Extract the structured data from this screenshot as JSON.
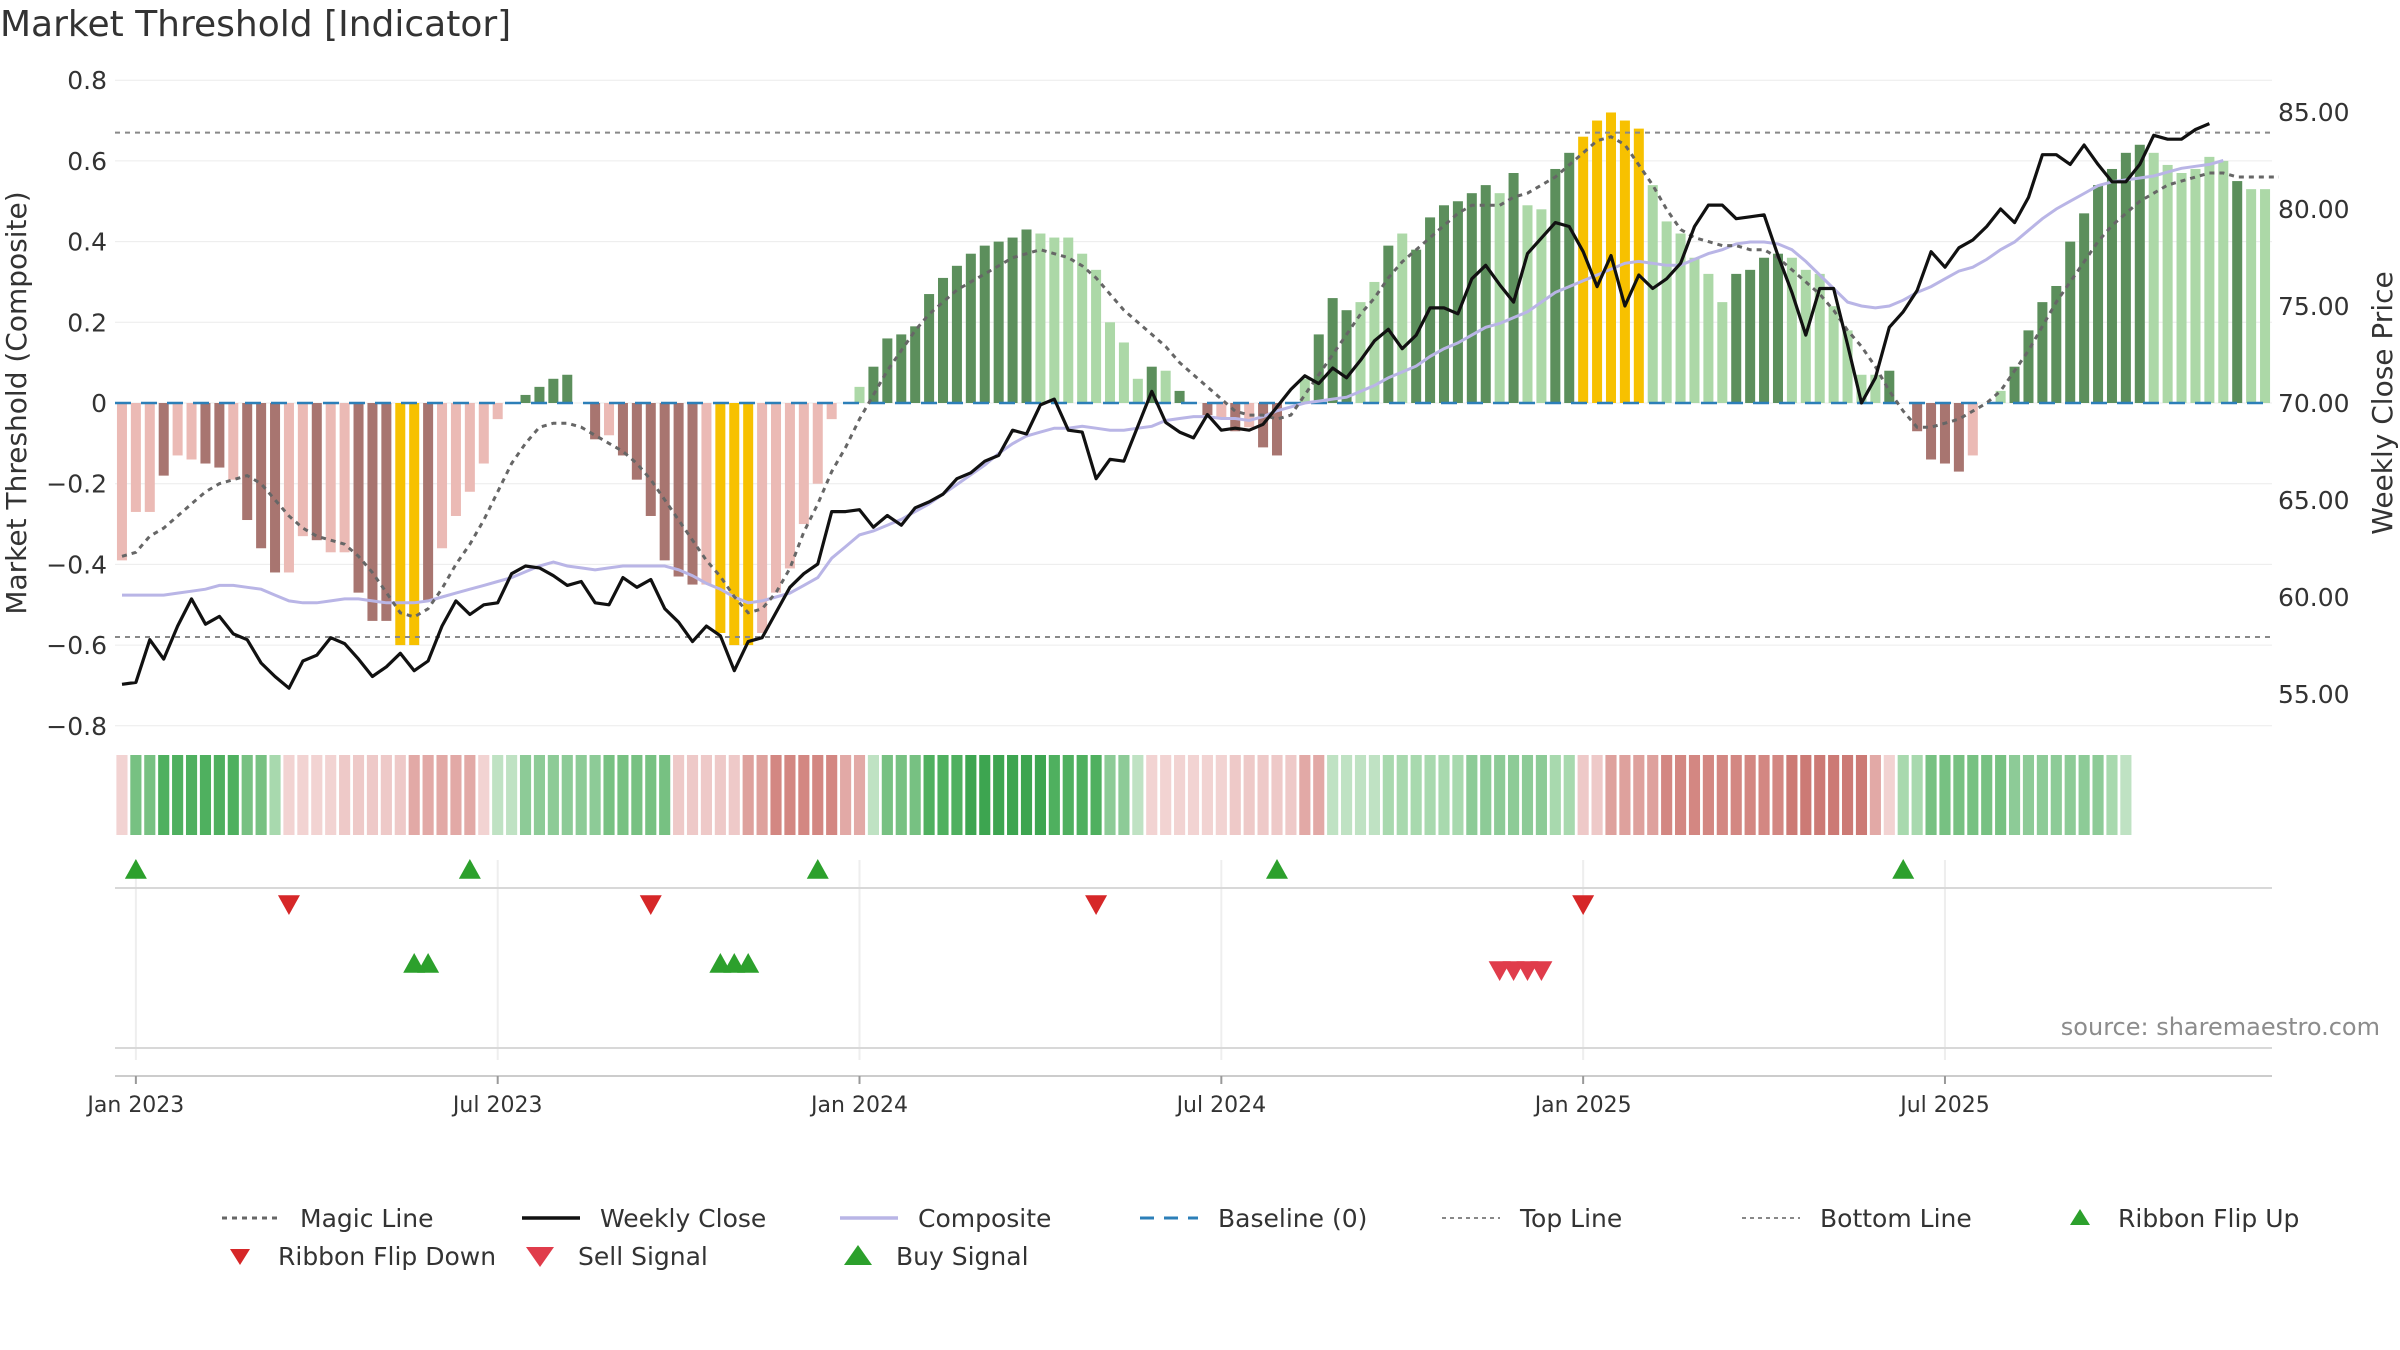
{
  "title": "Market Threshold [Indicator]",
  "source": "source: sharemaestro.com",
  "colors": {
    "bar_strong_pos": "#5c8f5c",
    "bar_weak_pos": "#acd8a7",
    "bar_strong_neg": "#a87570",
    "bar_weak_neg": "#ebbab5",
    "bar_extreme": "#f7c100",
    "weekly_close": "#111111",
    "composite": "#b9b5e6",
    "magic_line": "#666666",
    "baseline": "#2c7fb8",
    "threshold": "#888888",
    "buy": "#2ca02c",
    "sell": "#d62728",
    "sell_signal": "#e03c4b"
  },
  "chart_data": {
    "type": "bar",
    "xlabel": "",
    "ylabel_left": "Market Threshold (Composite)",
    "ylabel_right": "Weekly Close Price",
    "ylim_left": [
      -0.8,
      0.8
    ],
    "ylim_right": [
      52.5,
      85.5
    ],
    "yticks_left": [
      {
        "v": 0.8,
        "label": "0.8"
      },
      {
        "v": 0.6,
        "label": "0.6"
      },
      {
        "v": 0.4,
        "label": "0.4"
      },
      {
        "v": 0.2,
        "label": "0.2"
      },
      {
        "v": 0,
        "label": "0"
      },
      {
        "v": -0.2,
        "label": "−0.2"
      },
      {
        "v": -0.4,
        "label": "−0.4"
      },
      {
        "v": -0.6,
        "label": "−0.6"
      },
      {
        "v": -0.8,
        "label": "−0.8"
      }
    ],
    "yticks_right": [
      {
        "v": 85,
        "label": "85.00"
      },
      {
        "v": 80,
        "label": "80.00"
      },
      {
        "v": 75,
        "label": "75.00"
      },
      {
        "v": 70,
        "label": "70.00"
      },
      {
        "v": 65,
        "label": "65.00"
      },
      {
        "v": 60,
        "label": "60.00"
      },
      {
        "v": 55,
        "label": "55.00"
      }
    ],
    "xticks": [
      {
        "week": 1,
        "label": "Jan 2023"
      },
      {
        "week": 27,
        "label": "Jul 2023"
      },
      {
        "week": 53,
        "label": "Jan 2024"
      },
      {
        "week": 79,
        "label": "Jul 2024"
      },
      {
        "week": 105,
        "label": "Jan 2025"
      },
      {
        "week": 131,
        "label": "Jul 2025"
      }
    ],
    "top_line": 0.67,
    "bottom_line": -0.58,
    "baseline": 0,
    "grid": true,
    "legend_position": "bottom",
    "threshold_bars": [
      -0.39,
      -0.27,
      -0.27,
      -0.18,
      -0.13,
      -0.14,
      -0.15,
      -0.16,
      -0.19,
      -0.29,
      -0.36,
      -0.42,
      -0.42,
      -0.33,
      -0.34,
      -0.37,
      -0.37,
      -0.47,
      -0.54,
      -0.54,
      -0.6,
      -0.6,
      -0.49,
      -0.36,
      -0.28,
      -0.22,
      -0.15,
      -0.04,
      0,
      0.02,
      0.04,
      0.06,
      0.07,
      0,
      -0.09,
      -0.08,
      -0.13,
      -0.19,
      -0.28,
      -0.39,
      -0.43,
      -0.45,
      -0.45,
      -0.57,
      -0.6,
      -0.6,
      -0.57,
      -0.47,
      -0.41,
      -0.3,
      -0.2,
      -0.04,
      0,
      0.04,
      0.09,
      0.16,
      0.17,
      0.19,
      0.27,
      0.31,
      0.34,
      0.37,
      0.39,
      0.4,
      0.41,
      0.43,
      0.42,
      0.41,
      0.41,
      0.37,
      0.33,
      0.2,
      0.15,
      0.06,
      0.09,
      0.08,
      0.03,
      0,
      -0.03,
      -0.04,
      -0.07,
      -0.06,
      -0.11,
      -0.13,
      0,
      0.06,
      0.17,
      0.26,
      0.23,
      0.25,
      0.3,
      0.39,
      0.42,
      0.38,
      0.46,
      0.49,
      0.5,
      0.52,
      0.54,
      0.52,
      0.57,
      0.49,
      0.48,
      0.58,
      0.62,
      0.66,
      0.7,
      0.72,
      0.7,
      0.68,
      0.54,
      0.45,
      0.42,
      0.36,
      0.32,
      0.25,
      0.32,
      0.33,
      0.36,
      0.37,
      0.36,
      0.33,
      0.32,
      0.24,
      0.18,
      0.07,
      0.07,
      0.08,
      0,
      -0.07,
      -0.14,
      -0.15,
      -0.17,
      -0.13,
      0,
      0.03,
      0.09,
      0.18,
      0.25,
      0.29,
      0.4,
      0.47,
      0.54,
      0.58,
      0.62,
      0.64,
      0.62,
      0.59,
      0.57,
      0.58,
      0.61,
      0.6,
      0.55,
      0.53,
      0.53
    ],
    "bar_categories": [
      "weak-neg",
      "weak-neg",
      "weak-neg",
      "strong-neg",
      "weak-neg",
      "weak-neg",
      "strong-neg",
      "strong-neg",
      "weak-neg",
      "strong-neg",
      "strong-neg",
      "strong-neg",
      "weak-neg",
      "weak-neg",
      "strong-neg",
      "weak-neg",
      "weak-neg",
      "strong-neg",
      "strong-neg",
      "strong-neg",
      "extreme",
      "extreme",
      "strong-neg",
      "weak-neg",
      "weak-neg",
      "weak-neg",
      "weak-neg",
      "weak-neg",
      "zero",
      "strong-pos",
      "strong-pos",
      "strong-pos",
      "strong-pos",
      "zero",
      "strong-neg",
      "weak-neg",
      "strong-neg",
      "strong-neg",
      "strong-neg",
      "strong-neg",
      "strong-neg",
      "strong-neg",
      "weak-neg",
      "extreme",
      "extreme",
      "extreme",
      "weak-neg",
      "weak-neg",
      "weak-neg",
      "weak-neg",
      "weak-neg",
      "weak-neg",
      "zero",
      "weak-pos",
      "strong-pos",
      "strong-pos",
      "strong-pos",
      "strong-pos",
      "strong-pos",
      "strong-pos",
      "strong-pos",
      "strong-pos",
      "strong-pos",
      "strong-pos",
      "strong-pos",
      "strong-pos",
      "weak-pos",
      "weak-pos",
      "weak-pos",
      "weak-pos",
      "weak-pos",
      "weak-pos",
      "weak-pos",
      "weak-pos",
      "strong-pos",
      "weak-pos",
      "strong-pos",
      "zero",
      "strong-neg",
      "weak-neg",
      "strong-neg",
      "weak-neg",
      "strong-neg",
      "strong-neg",
      "zero",
      "weak-pos",
      "strong-pos",
      "strong-pos",
      "strong-pos",
      "weak-pos",
      "weak-pos",
      "strong-pos",
      "weak-pos",
      "strong-pos",
      "strong-pos",
      "strong-pos",
      "strong-pos",
      "strong-pos",
      "strong-pos",
      "weak-pos",
      "strong-pos",
      "weak-pos",
      "weak-pos",
      "strong-pos",
      "strong-pos",
      "extreme",
      "extreme",
      "extreme",
      "extreme",
      "extreme",
      "weak-pos",
      "weak-pos",
      "weak-pos",
      "weak-pos",
      "weak-pos",
      "weak-pos",
      "strong-pos",
      "strong-pos",
      "strong-pos",
      "strong-pos",
      "weak-pos",
      "weak-pos",
      "weak-pos",
      "weak-pos",
      "weak-pos",
      "weak-pos",
      "weak-pos",
      "strong-pos",
      "zero",
      "strong-neg",
      "strong-neg",
      "strong-neg",
      "strong-neg",
      "weak-neg",
      "zero",
      "weak-pos",
      "strong-pos",
      "strong-pos",
      "strong-pos",
      "strong-pos",
      "strong-pos",
      "strong-pos",
      "strong-pos",
      "strong-pos",
      "strong-pos",
      "strong-pos",
      "weak-pos",
      "weak-pos",
      "weak-pos",
      "weak-pos",
      "weak-pos",
      "weak-pos",
      "strong-pos",
      "weak-pos",
      "weak-pos",
      "weak-pos",
      "strong-pos"
    ],
    "weekly_close": [
      55.5,
      55.6,
      57.8,
      56.8,
      58.5,
      59.9,
      58.6,
      59.0,
      58.1,
      57.8,
      56.6,
      55.9,
      55.3,
      56.7,
      57.0,
      57.9,
      57.6,
      56.8,
      55.9,
      56.4,
      57.1,
      56.2,
      56.7,
      58.5,
      59.8,
      59.1,
      59.6,
      59.7,
      61.2,
      61.6,
      61.5,
      61.1,
      60.6,
      60.8,
      59.7,
      59.6,
      61.0,
      60.5,
      60.9,
      59.4,
      58.7,
      57.7,
      58.5,
      58.0,
      56.2,
      57.7,
      57.9,
      59.2,
      60.5,
      61.2,
      61.7,
      64.4,
      64.4,
      64.5,
      63.6,
      64.2,
      63.7,
      64.6,
      64.9,
      65.3,
      66.1,
      66.4,
      67.0,
      67.3,
      68.6,
      68.4,
      69.9,
      70.2,
      68.6,
      68.5,
      66.1,
      67.1,
      67.0,
      68.8,
      70.6,
      69.0,
      68.5,
      68.2,
      69.4,
      68.6,
      68.7,
      68.6,
      68.9,
      69.8,
      70.7,
      71.4,
      71.0,
      71.8,
      71.3,
      72.2,
      73.2,
      73.8,
      72.8,
      73.5,
      74.9,
      74.9,
      74.6,
      76.4,
      77.1,
      76.1,
      75.2,
      77.7,
      78.5,
      79.3,
      79.1,
      77.8,
      76.0,
      77.6,
      75.0,
      76.6,
      75.9,
      76.4,
      77.2,
      79.1,
      80.2,
      80.2,
      79.5,
      79.6,
      79.7,
      77.6,
      75.7,
      73.5,
      75.9,
      75.9,
      73.0,
      70.0,
      71.3,
      73.9,
      74.7,
      75.8,
      77.8,
      77.0,
      78.0,
      78.4,
      79.1,
      80.0,
      79.3,
      80.6,
      82.8,
      82.8,
      82.3,
      83.3,
      82.3,
      81.4,
      81.4,
      82.3,
      83.8,
      83.6,
      83.6,
      84.1,
      84.4
    ],
    "composite": [
      60.1,
      60.1,
      60.1,
      60.1,
      60.2,
      60.3,
      60.4,
      60.6,
      60.6,
      60.5,
      60.4,
      60.1,
      59.8,
      59.7,
      59.7,
      59.8,
      59.9,
      59.9,
      59.8,
      59.7,
      59.7,
      59.7,
      59.8,
      60.0,
      60.2,
      60.4,
      60.6,
      60.8,
      61.0,
      61.3,
      61.6,
      61.8,
      61.6,
      61.5,
      61.4,
      61.5,
      61.6,
      61.6,
      61.6,
      61.6,
      61.4,
      61.1,
      60.7,
      60.4,
      60.0,
      59.7,
      59.8,
      60.0,
      60.2,
      60.6,
      61.0,
      62.0,
      62.6,
      63.2,
      63.4,
      63.7,
      64.0,
      64.4,
      64.8,
      65.3,
      65.8,
      66.3,
      66.8,
      67.4,
      67.9,
      68.3,
      68.5,
      68.7,
      68.7,
      68.8,
      68.7,
      68.6,
      68.6,
      68.7,
      68.8,
      69.1,
      69.2,
      69.3,
      69.3,
      69.2,
      69.2,
      69.1,
      69.3,
      69.6,
      69.8,
      70.0,
      70.1,
      70.2,
      70.3,
      70.6,
      70.9,
      71.3,
      71.6,
      71.9,
      72.4,
      72.8,
      73.1,
      73.5,
      73.9,
      74.1,
      74.4,
      74.7,
      75.2,
      75.7,
      76.0,
      76.3,
      76.6,
      76.9,
      77.2,
      77.3,
      77.2,
      77.1,
      77.1,
      77.4,
      77.7,
      77.9,
      78.2,
      78.3,
      78.3,
      78.2,
      77.9,
      77.3,
      76.6,
      75.9,
      75.2,
      75.0,
      74.9,
      75.0,
      75.3,
      75.7,
      76.0,
      76.4,
      76.8,
      77.0,
      77.4,
      77.9,
      78.3,
      78.9,
      79.5,
      80.0,
      80.4,
      80.8,
      81.2,
      81.4,
      81.5,
      81.6,
      81.7,
      81.9,
      82.1,
      82.2,
      82.3,
      82.5
    ],
    "magic_line": [
      -0.38,
      -0.37,
      -0.33,
      -0.31,
      -0.28,
      -0.25,
      -0.22,
      -0.2,
      -0.19,
      -0.18,
      -0.2,
      -0.24,
      -0.28,
      -0.31,
      -0.33,
      -0.34,
      -0.35,
      -0.38,
      -0.42,
      -0.47,
      -0.52,
      -0.53,
      -0.51,
      -0.46,
      -0.4,
      -0.35,
      -0.29,
      -0.22,
      -0.15,
      -0.1,
      -0.06,
      -0.05,
      -0.05,
      -0.06,
      -0.08,
      -0.1,
      -0.12,
      -0.15,
      -0.19,
      -0.24,
      -0.29,
      -0.34,
      -0.39,
      -0.43,
      -0.48,
      -0.52,
      -0.51,
      -0.47,
      -0.41,
      -0.32,
      -0.25,
      -0.17,
      -0.11,
      -0.04,
      0.02,
      0.08,
      0.13,
      0.18,
      0.22,
      0.25,
      0.28,
      0.3,
      0.32,
      0.34,
      0.36,
      0.37,
      0.38,
      0.37,
      0.36,
      0.34,
      0.31,
      0.27,
      0.23,
      0.2,
      0.17,
      0.14,
      0.1,
      0.07,
      0.04,
      0.01,
      -0.02,
      -0.03,
      -0.03,
      -0.04,
      -0.03,
      0.02,
      0.07,
      0.12,
      0.17,
      0.22,
      0.26,
      0.31,
      0.35,
      0.38,
      0.41,
      0.44,
      0.47,
      0.49,
      0.49,
      0.49,
      0.51,
      0.52,
      0.54,
      0.56,
      0.59,
      0.62,
      0.65,
      0.66,
      0.64,
      0.59,
      0.54,
      0.48,
      0.43,
      0.41,
      0.4,
      0.39,
      0.39,
      0.38,
      0.38,
      0.36,
      0.33,
      0.3,
      0.27,
      0.23,
      0.18,
      0.14,
      0.09,
      0.03,
      -0.02,
      -0.06,
      -0.06,
      -0.05,
      -0.04,
      -0.02,
      0.0,
      0.03,
      0.08,
      0.13,
      0.19,
      0.25,
      0.3,
      0.35,
      0.4,
      0.44,
      0.47,
      0.5,
      0.52,
      0.54,
      0.55,
      0.56,
      0.57,
      0.57,
      0.56,
      0.56,
      0.56,
      0.56
    ],
    "ribbon": [
      {
        "c": "#f2d3d2",
        "n": 1
      },
      {
        "c": "#77c182",
        "n": 2
      },
      {
        "c": "#4fb05f",
        "n": 6
      },
      {
        "c": "#77c182",
        "n": 2
      },
      {
        "c": "#a8d9ae",
        "n": 1
      },
      {
        "c": "#f2d3d2",
        "n": 4
      },
      {
        "c": "#eec9c8",
        "n": 5
      },
      {
        "c": "#e2a9a6",
        "n": 5
      },
      {
        "c": "#f2d3d2",
        "n": 1
      },
      {
        "c": "#bfe2c3",
        "n": 2
      },
      {
        "c": "#8dcb97",
        "n": 6
      },
      {
        "c": "#77c182",
        "n": 5
      },
      {
        "c": "#eec9c8",
        "n": 5
      },
      {
        "c": "#dea19d",
        "n": 2
      },
      {
        "c": "#d38782",
        "n": 5
      },
      {
        "c": "#e2a9a6",
        "n": 2
      },
      {
        "c": "#bfe2c3",
        "n": 1
      },
      {
        "c": "#77c182",
        "n": 3
      },
      {
        "c": "#4fb05f",
        "n": 3
      },
      {
        "c": "#3da550",
        "n": 6
      },
      {
        "c": "#4fb05f",
        "n": 4
      },
      {
        "c": "#8dcb97",
        "n": 2
      },
      {
        "c": "#bfe2c3",
        "n": 1
      },
      {
        "c": "#f2d3d2",
        "n": 6
      },
      {
        "c": "#eec9c8",
        "n": 5
      },
      {
        "c": "#e2a9a6",
        "n": 2
      },
      {
        "c": "#bfe2c3",
        "n": 4
      },
      {
        "c": "#a8d9ae",
        "n": 6
      },
      {
        "c": "#8dcb97",
        "n": 6
      },
      {
        "c": "#a8d9ae",
        "n": 2
      },
      {
        "c": "#eec9c8",
        "n": 2
      },
      {
        "c": "#dea19d",
        "n": 4
      },
      {
        "c": "#d38782",
        "n": 9
      },
      {
        "c": "#cc7a75",
        "n": 6
      },
      {
        "c": "#e2a9a6",
        "n": 1
      },
      {
        "c": "#f2d3d2",
        "n": 1
      },
      {
        "c": "#a8d9ae",
        "n": 2
      },
      {
        "c": "#77c182",
        "n": 6
      },
      {
        "c": "#8dcb97",
        "n": 7
      },
      {
        "c": "#a8d9ae",
        "n": 1
      },
      {
        "c": "#bfe2c3",
        "n": 1
      }
    ],
    "signals": {
      "ribbon_flip_up": [
        1,
        25,
        50,
        83,
        128
      ],
      "ribbon_flip_down": [
        12,
        38,
        70,
        105
      ],
      "buy_signal": [
        21,
        22,
        43,
        44,
        45
      ],
      "sell_signal": [
        99,
        100,
        101,
        102
      ]
    }
  },
  "legend": [
    {
      "key": "magic",
      "label": "Magic Line"
    },
    {
      "key": "close",
      "label": "Weekly Close"
    },
    {
      "key": "composite",
      "label": "Composite"
    },
    {
      "key": "baseline",
      "label": "Baseline (0)"
    },
    {
      "key": "top",
      "label": "Top Line"
    },
    {
      "key": "bottom",
      "label": "Bottom Line"
    },
    {
      "key": "flipup",
      "label": "Ribbon Flip Up"
    },
    {
      "key": "flipdown",
      "label": "Ribbon Flip Down"
    },
    {
      "key": "sell",
      "label": "Sell Signal"
    },
    {
      "key": "buy",
      "label": "Buy Signal"
    }
  ]
}
